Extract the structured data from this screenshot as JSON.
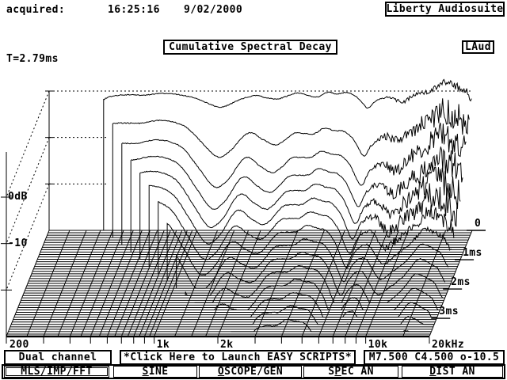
{
  "header": {
    "acquired_label": "acquired:",
    "time": "16:25:16",
    "date": "9/02/2000",
    "app_name": "Liberty Audiosuite"
  },
  "title": "Cumulative Spectral Decay",
  "laud_badge": "LAud",
  "t_marker": "T=2.79ms",
  "status_bar": {
    "channel_mode": "Dual channel",
    "script_hint": "*Click Here to Launch EASY SCRIPTS*",
    "cursor_readout": "M7.500 C4.500 o-10.5"
  },
  "buttons": [
    {
      "label": "MLS/IMP/FFT",
      "hotkey": "M",
      "active": true
    },
    {
      "label": "SINE",
      "hotkey": "S",
      "active": false
    },
    {
      "label": "OSCOPE/GEN",
      "hotkey": "O",
      "active": false
    },
    {
      "label": "SPEC AN",
      "hotkey": "P",
      "active": false
    },
    {
      "label": "DIST AN",
      "hotkey": "D",
      "active": false
    }
  ],
  "chart_data": {
    "type": "waterfall_csd",
    "title": "Cumulative Spectral Decay",
    "freq_axis": {
      "min_hz": 200,
      "max_hz": 20000,
      "scale": "log",
      "ticks": [
        {
          "f": 200,
          "label": "200"
        },
        {
          "f": 300,
          "label": ""
        },
        {
          "f": 400,
          "label": ""
        },
        {
          "f": 500,
          "label": ""
        },
        {
          "f": 600,
          "label": ""
        },
        {
          "f": 700,
          "label": ""
        },
        {
          "f": 800,
          "label": ""
        },
        {
          "f": 900,
          "label": ""
        },
        {
          "f": 1000,
          "label": "1k"
        },
        {
          "f": 2000,
          "label": "2k"
        },
        {
          "f": 3000,
          "label": ""
        },
        {
          "f": 4000,
          "label": ""
        },
        {
          "f": 5000,
          "label": ""
        },
        {
          "f": 6000,
          "label": ""
        },
        {
          "f": 7000,
          "label": ""
        },
        {
          "f": 8000,
          "label": ""
        },
        {
          "f": 9000,
          "label": ""
        },
        {
          "f": 10000,
          "label": "10k"
        },
        {
          "f": 20000,
          "label": "20kHz"
        }
      ]
    },
    "db_axis": {
      "min_db": -30,
      "max_db": 0,
      "ticks": [
        {
          "db": 0,
          "label": "0dB"
        },
        {
          "db": -10,
          "label": "-10"
        },
        {
          "db": -20,
          "label": ""
        }
      ]
    },
    "time_axis": {
      "max_ms": 3.62,
      "ticks": [
        {
          "ms": 0,
          "label": "0"
        },
        {
          "ms": 1,
          "label": "1ms"
        },
        {
          "ms": 2,
          "label": "2ms"
        },
        {
          "ms": 3,
          "label": "3ms"
        }
      ]
    },
    "floor_grid_freqs": [
      200,
      250,
      300,
      350,
      400,
      450,
      500,
      550,
      600,
      650,
      700,
      750,
      800,
      850,
      900,
      950,
      1000,
      1250,
      1500,
      1750,
      2000,
      3000,
      4000,
      5000,
      6000,
      7000,
      8000,
      9000,
      10000,
      15000,
      20000
    ],
    "slices": {
      "baseline_count": 45,
      "curve_every": 3
    },
    "lf_cutoff": {
      "f0_hz": 362,
      "decades_per_ms": 0.23
    },
    "response_db": [
      [
        355,
        -2.0
      ],
      [
        380,
        -1.3
      ],
      [
        430,
        -0.9
      ],
      [
        500,
        -0.8
      ],
      [
        560,
        -0.9
      ],
      [
        640,
        -0.6
      ],
      [
        720,
        -0.5
      ],
      [
        800,
        -0.7
      ],
      [
        900,
        -1.1
      ],
      [
        1000,
        -1.7
      ],
      [
        1150,
        -2.8
      ],
      [
        1300,
        -3.5
      ],
      [
        1450,
        -2.7
      ],
      [
        1650,
        -1.6
      ],
      [
        1900,
        -1.0
      ],
      [
        2100,
        -1.4
      ],
      [
        2400,
        -1.7
      ],
      [
        2700,
        -1.0
      ],
      [
        3000,
        -0.4
      ],
      [
        3300,
        -0.9
      ],
      [
        3700,
        -1.3
      ],
      [
        4100,
        -0.3
      ],
      [
        4600,
        -0.6
      ],
      [
        5100,
        -0.3
      ],
      [
        5600,
        -1.0
      ],
      [
        6000,
        -2.3
      ],
      [
        6400,
        -3.7
      ],
      [
        6800,
        -2.6
      ],
      [
        7400,
        -1.7
      ],
      [
        8100,
        -1.4
      ],
      [
        8800,
        -2.0
      ],
      [
        9500,
        -2.3
      ],
      [
        10500,
        -0.9
      ],
      [
        11500,
        -0.5
      ],
      [
        12500,
        -0.2
      ],
      [
        13500,
        0.7
      ],
      [
        14800,
        2.0
      ],
      [
        15800,
        1.6
      ],
      [
        17000,
        1.0
      ],
      [
        18200,
        0.6
      ],
      [
        19000,
        -0.6
      ],
      [
        20000,
        -2.2
      ]
    ],
    "decay_fast_db": [
      [
        355,
        5
      ],
      [
        500,
        5.5
      ],
      [
        700,
        5
      ],
      [
        900,
        6
      ],
      [
        1100,
        10
      ],
      [
        1300,
        13
      ],
      [
        1500,
        12
      ],
      [
        1800,
        8
      ],
      [
        2100,
        10
      ],
      [
        2500,
        12
      ],
      [
        3000,
        10
      ],
      [
        3500,
        9
      ],
      [
        4200,
        8.5
      ],
      [
        5000,
        9.5
      ],
      [
        5600,
        11
      ],
      [
        6300,
        13.5
      ],
      [
        7000,
        12
      ],
      [
        8000,
        12
      ],
      [
        9000,
        13
      ],
      [
        10000,
        13
      ],
      [
        12000,
        12.5
      ],
      [
        14000,
        12
      ],
      [
        16000,
        12.5
      ],
      [
        18000,
        13
      ],
      [
        20000,
        13.5
      ]
    ],
    "decay_rate_db_per_ms": [
      [
        355,
        6
      ],
      [
        700,
        5.8
      ],
      [
        1000,
        6.2
      ],
      [
        1400,
        7.2
      ],
      [
        1800,
        7.3
      ],
      [
        2200,
        6.6
      ],
      [
        2600,
        5.8
      ],
      [
        3200,
        5.4
      ],
      [
        4000,
        5.4
      ],
      [
        5000,
        5.3
      ],
      [
        6300,
        5.8
      ],
      [
        8000,
        5.2
      ],
      [
        10000,
        6.8
      ],
      [
        13000,
        6.2
      ],
      [
        16000,
        5.6
      ],
      [
        20000,
        5.8
      ]
    ],
    "decay_tau_ms": [
      [
        355,
        0.3
      ],
      [
        6000,
        0.3
      ],
      [
        9000,
        0.45
      ],
      [
        12000,
        0.7
      ],
      [
        20000,
        0.9
      ]
    ],
    "noise": {
      "ref_hz": 6500,
      "max_octaves": 1.8,
      "amp_db": 2.2,
      "base_db": 0.1,
      "t_full_start_ms": 0.25,
      "t_full_end_ms": 1.25,
      "t_zero_ms": 1.8,
      "seed": 13
    }
  }
}
